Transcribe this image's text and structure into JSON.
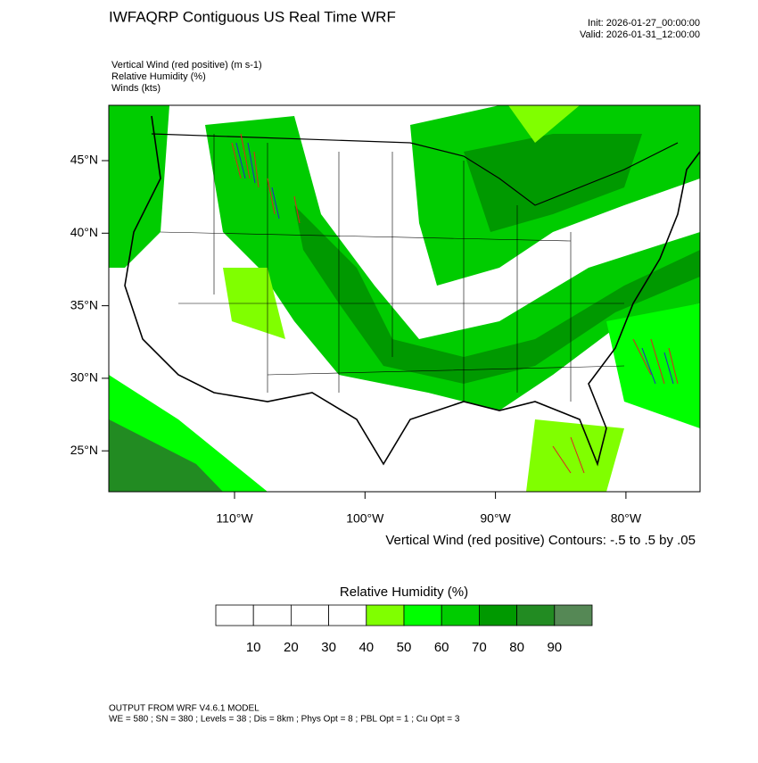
{
  "header": {
    "title": "IWFAQRP Contiguous US Real Time WRF",
    "init": "Init: 2026-01-27_00:00:00",
    "valid": "Valid: 2026-01-31_12:00:00"
  },
  "fields": [
    "Vertical Wind (red positive)   (m s-1)",
    "Relative Humidity   (%)",
    "Winds   (kts)"
  ],
  "map": {
    "lat_labels": [
      "45°N",
      "40°N",
      "35°N",
      "30°N",
      "25°N"
    ],
    "lon_labels": [
      "110°W",
      "100°W",
      "90°W",
      "80°W"
    ],
    "contour_note": "Vertical Wind (red positive) Contours: -.5 to .5 by .05"
  },
  "colorbar": {
    "title": "Relative Humidity  (%)",
    "labels": [
      10,
      20,
      30,
      40,
      50,
      60,
      70,
      80,
      90
    ],
    "colors": [
      "#ffffff",
      "#ffffff",
      "#ffffff",
      "#ffffff",
      "#80ff00",
      "#00ff00",
      "#00cc00",
      "#009900",
      "#228b22",
      "#558855"
    ]
  },
  "footer": {
    "line1": "OUTPUT FROM WRF V4.6.1 MODEL",
    "line2": "WE = 580 ; SN = 380 ; Levels = 38 ; Dis = 8km ; Phys Opt = 8 ; PBL Opt = 1 ; Cu Opt = 3"
  }
}
